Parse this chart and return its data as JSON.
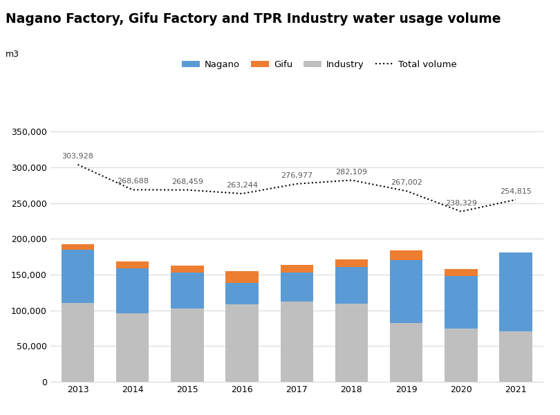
{
  "years": [
    2013,
    2014,
    2015,
    2016,
    2017,
    2018,
    2019,
    2020,
    2021
  ],
  "industry": [
    110000,
    96000,
    103000,
    108000,
    112000,
    109000,
    82000,
    75000,
    71000
  ],
  "nagano": [
    75000,
    63000,
    50000,
    30000,
    41000,
    52000,
    88000,
    73000,
    110000
  ],
  "gifu": [
    8000,
    9000,
    10000,
    17000,
    11000,
    10000,
    14000,
    10000,
    0
  ],
  "total": [
    303928,
    268688,
    268459,
    263244,
    276977,
    282109,
    267002,
    238329,
    254815
  ],
  "nagano_color": "#5B9BD5",
  "gifu_color": "#ED7D31",
  "industry_color": "#BFBFBF",
  "title": "Nagano Factory, Gifu Factory and TPR Industry water usage volume",
  "ylabel": "m3",
  "ylim": [
    0,
    360000
  ],
  "yticks": [
    0,
    50000,
    100000,
    150000,
    200000,
    250000,
    300000,
    350000
  ],
  "legend_labels": [
    "Nagano",
    "Gifu",
    "Industry",
    "Total volume"
  ]
}
